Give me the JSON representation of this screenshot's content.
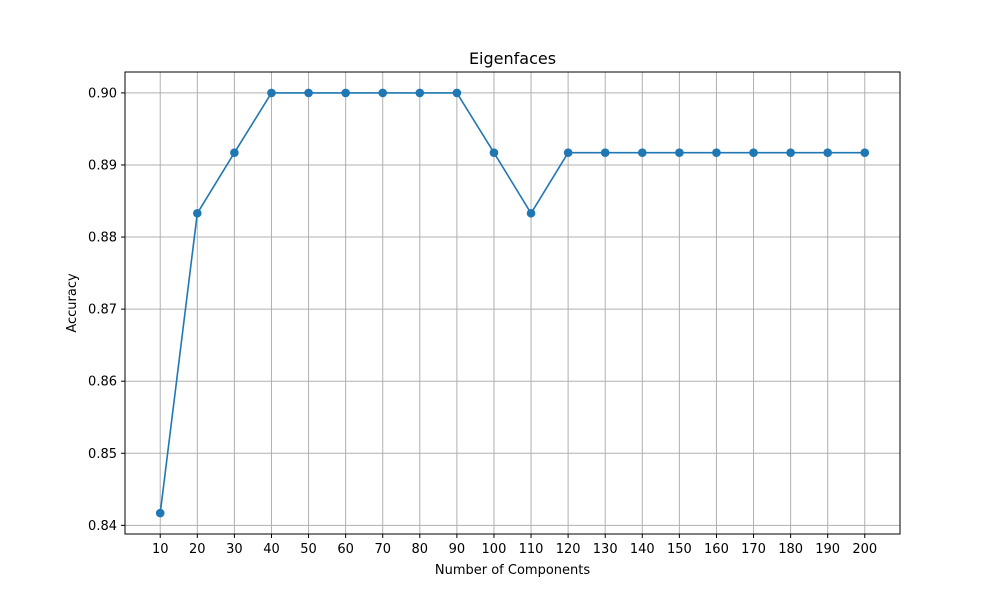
{
  "chart_data": {
    "type": "line",
    "title": "Eigenfaces",
    "xlabel": "Number of Components",
    "ylabel": "Accuracy",
    "x": [
      10,
      20,
      30,
      40,
      50,
      60,
      70,
      80,
      90,
      100,
      110,
      120,
      130,
      140,
      150,
      160,
      170,
      180,
      190,
      200
    ],
    "y": [
      0.8417,
      0.8833,
      0.8917,
      0.9,
      0.9,
      0.9,
      0.9,
      0.9,
      0.9,
      0.8917,
      0.8833,
      0.8917,
      0.8917,
      0.8917,
      0.8917,
      0.8917,
      0.8917,
      0.8917,
      0.8917,
      0.8917
    ],
    "xticks": [
      "10",
      "20",
      "30",
      "40",
      "50",
      "60",
      "70",
      "80",
      "90",
      "100",
      "110",
      "120",
      "130",
      "140",
      "150",
      "160",
      "170",
      "180",
      "190",
      "200"
    ],
    "yticks": [
      0.84,
      0.85,
      0.86,
      0.87,
      0.88,
      0.89,
      0.9
    ],
    "ytick_labels": [
      "0.84",
      "0.85",
      "0.86",
      "0.87",
      "0.88",
      "0.89",
      "0.90"
    ],
    "xlim": [
      0.5,
      209.5
    ],
    "ylim": [
      0.8388,
      0.9029
    ],
    "grid": true,
    "marker": "circle",
    "line_color": "#1f77b4"
  }
}
